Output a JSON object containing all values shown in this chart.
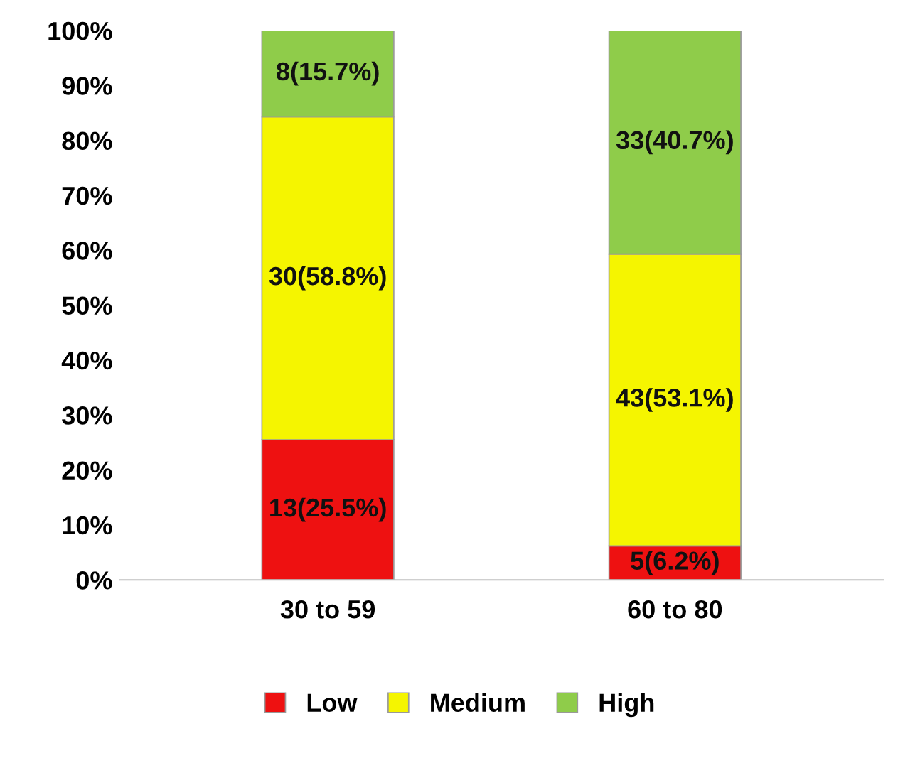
{
  "chart_data": {
    "type": "bar",
    "stacked": true,
    "categories": [
      "30 to 59",
      "60 to 80"
    ],
    "series": [
      {
        "name": "Low",
        "color": "#ee1111",
        "values": [
          25.5,
          6.2
        ],
        "value_labels": [
          "13(25.5%)",
          "5(6.2%)"
        ]
      },
      {
        "name": "Medium",
        "color": "#f5f500",
        "values": [
          58.8,
          53.1
        ],
        "value_labels": [
          "30(58.8%)",
          "43(53.1%)"
        ]
      },
      {
        "name": "High",
        "color": "#8fcc4a",
        "values": [
          15.7,
          40.7
        ],
        "value_labels": [
          "8(15.7%)",
          "33(40.7%)"
        ]
      }
    ],
    "ylim": [
      0,
      100
    ],
    "yticks": [
      {
        "value": 0,
        "label": "0%"
      },
      {
        "value": 10,
        "label": "10%"
      },
      {
        "value": 20,
        "label": "20%"
      },
      {
        "value": 30,
        "label": "30%"
      },
      {
        "value": 40,
        "label": "40%"
      },
      {
        "value": 50,
        "label": "50%"
      },
      {
        "value": 60,
        "label": "60%"
      },
      {
        "value": 70,
        "label": "70%"
      },
      {
        "value": 80,
        "label": "80%"
      },
      {
        "value": 90,
        "label": "90%"
      },
      {
        "value": 100,
        "label": "100%"
      }
    ],
    "grid": false,
    "legend": "bottom"
  }
}
